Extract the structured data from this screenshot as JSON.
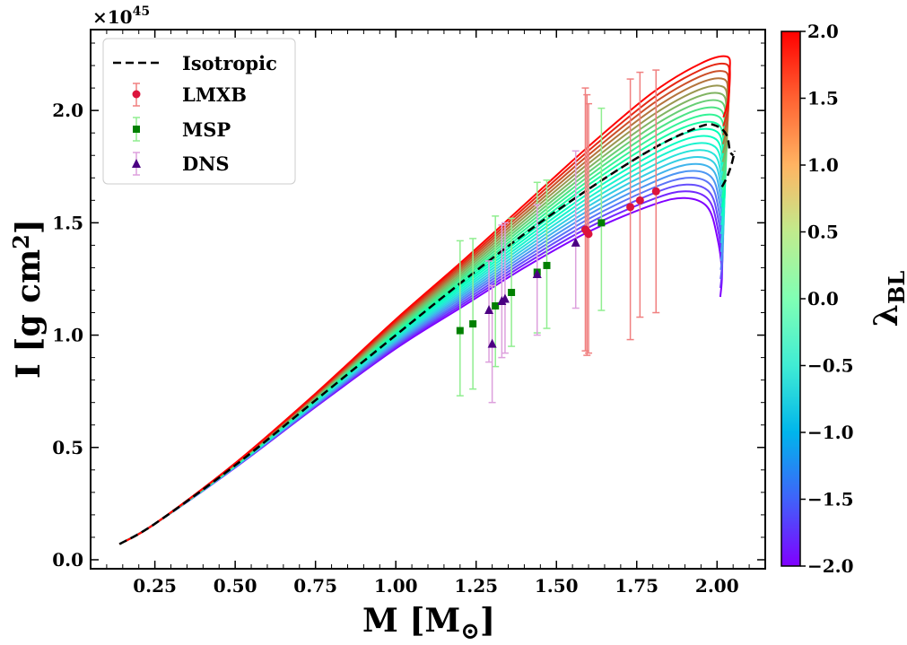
{
  "chart_data": {
    "type": "line",
    "xlabel": "M [M",
    "xlabel_sub": "⊙",
    "xlabel_close": "]",
    "ylabel": "I [g cm",
    "ylabel_sup": "2",
    "ylabel_close": "]",
    "offset_text": "×10",
    "offset_exp": "45",
    "xlim": [
      0.05,
      2.15
    ],
    "ylim": [
      -0.04,
      2.36
    ],
    "xticks": [
      0.25,
      0.5,
      0.75,
      1.0,
      1.25,
      1.5,
      1.75,
      2.0
    ],
    "xtick_labels": [
      "0.25",
      "0.50",
      "0.75",
      "1.00",
      "1.25",
      "1.50",
      "1.75",
      "2.00"
    ],
    "yticks": [
      0.0,
      0.5,
      1.0,
      1.5,
      2.0
    ],
    "ytick_labels": [
      "0.0",
      "0.5",
      "1.0",
      "1.5",
      "2.0"
    ],
    "grid": false,
    "legend_position": "top-left",
    "colorbar": {
      "label": "λ",
      "label_sub": "BL",
      "range": [
        -2.0,
        2.0
      ],
      "ticks": [
        2.0,
        1.5,
        1.0,
        0.5,
        0.0,
        -0.5,
        -1.0,
        -1.5,
        -2.0
      ],
      "tick_labels": [
        "2.0",
        "1.5",
        "1.0",
        "0.5",
        "0.0",
        "−0.5",
        "−1.0",
        "−1.5",
        "−2.0"
      ],
      "colormap": "rainbow"
    },
    "family": {
      "lambda_values": [
        -2.0,
        -1.8,
        -1.6,
        -1.4,
        -1.2,
        -1.0,
        -0.8,
        -0.6,
        -0.4,
        -0.2,
        0.0,
        0.2,
        0.4,
        0.6,
        0.8,
        1.0,
        1.2,
        1.4,
        1.6,
        1.8,
        2.0
      ],
      "curve_lambda_min": {
        "x": [
          0.14,
          0.25,
          0.5,
          0.75,
          1.0,
          1.2,
          1.4,
          1.6,
          1.8,
          1.9,
          1.97,
          2.0,
          2.015,
          2.01
        ],
        "y": [
          0.07,
          0.16,
          0.41,
          0.68,
          0.94,
          1.12,
          1.3,
          1.46,
          1.58,
          1.61,
          1.57,
          1.44,
          1.28,
          1.17
        ]
      },
      "curve_lambda_max": {
        "x": [
          0.14,
          0.25,
          0.5,
          0.75,
          1.0,
          1.2,
          1.4,
          1.6,
          1.8,
          1.95,
          2.03,
          2.04,
          2.035,
          2.02
        ],
        "y": [
          0.07,
          0.16,
          0.43,
          0.74,
          1.07,
          1.32,
          1.58,
          1.84,
          2.08,
          2.21,
          2.24,
          2.18,
          2.05,
          1.97
        ]
      }
    },
    "series": [
      {
        "name": "Isotropic",
        "style": "dashed",
        "color": "#000000",
        "x": [
          0.14,
          0.25,
          0.5,
          0.75,
          1.0,
          1.2,
          1.4,
          1.6,
          1.8,
          1.95,
          2.0,
          2.03,
          2.04,
          2.05
        ],
        "y": [
          0.07,
          0.16,
          0.42,
          0.71,
          1.0,
          1.23,
          1.45,
          1.65,
          1.83,
          1.93,
          1.93,
          1.89,
          1.82,
          1.8
        ],
        "x2": [
          2.015,
          2.03,
          2.045,
          2.055
        ],
        "y2": [
          1.66,
          1.7,
          1.76,
          1.82
        ]
      },
      {
        "name": "LMXB",
        "marker": "circle",
        "color": "#dc143c",
        "errcolor": "#f08080",
        "points": [
          {
            "x": 1.59,
            "y": 1.47,
            "lo": 0.93,
            "hi": 2.1
          },
          {
            "x": 1.595,
            "y": 1.46,
            "lo": 0.91,
            "hi": 2.07
          },
          {
            "x": 1.6,
            "y": 1.45,
            "lo": 0.92,
            "hi": 2.03
          },
          {
            "x": 1.73,
            "y": 1.57,
            "lo": 0.98,
            "hi": 2.14
          },
          {
            "x": 1.76,
            "y": 1.6,
            "lo": 1.08,
            "hi": 2.17
          },
          {
            "x": 1.81,
            "y": 1.64,
            "lo": 1.1,
            "hi": 2.18
          }
        ]
      },
      {
        "name": "MSP",
        "marker": "square",
        "color": "#008000",
        "errcolor": "#90ee90",
        "points": [
          {
            "x": 1.2,
            "y": 1.02,
            "lo": 0.73,
            "hi": 1.42
          },
          {
            "x": 1.24,
            "y": 1.05,
            "lo": 0.76,
            "hi": 1.43
          },
          {
            "x": 1.31,
            "y": 1.13,
            "lo": 0.86,
            "hi": 1.53
          },
          {
            "x": 1.36,
            "y": 1.19,
            "lo": 0.95,
            "hi": 1.52
          },
          {
            "x": 1.44,
            "y": 1.28,
            "lo": 1.01,
            "hi": 1.68
          },
          {
            "x": 1.47,
            "y": 1.31,
            "lo": 1.03,
            "hi": 1.69
          },
          {
            "x": 1.64,
            "y": 1.5,
            "lo": 1.11,
            "hi": 2.01
          }
        ]
      },
      {
        "name": "DNS",
        "marker": "triangle",
        "color": "#4b0082",
        "errcolor": "#dda0dd",
        "points": [
          {
            "x": 1.29,
            "y": 1.11,
            "lo": 0.88,
            "hi": 1.33
          },
          {
            "x": 1.3,
            "y": 0.96,
            "lo": 0.7,
            "hi": 1.22
          },
          {
            "x": 1.33,
            "y": 1.15,
            "lo": 0.9,
            "hi": 1.49
          },
          {
            "x": 1.34,
            "y": 1.16,
            "lo": 0.92,
            "hi": 1.5
          },
          {
            "x": 1.44,
            "y": 1.27,
            "lo": 1.0,
            "hi": 1.58
          },
          {
            "x": 1.56,
            "y": 1.41,
            "lo": 1.12,
            "hi": 1.82
          }
        ]
      }
    ]
  }
}
